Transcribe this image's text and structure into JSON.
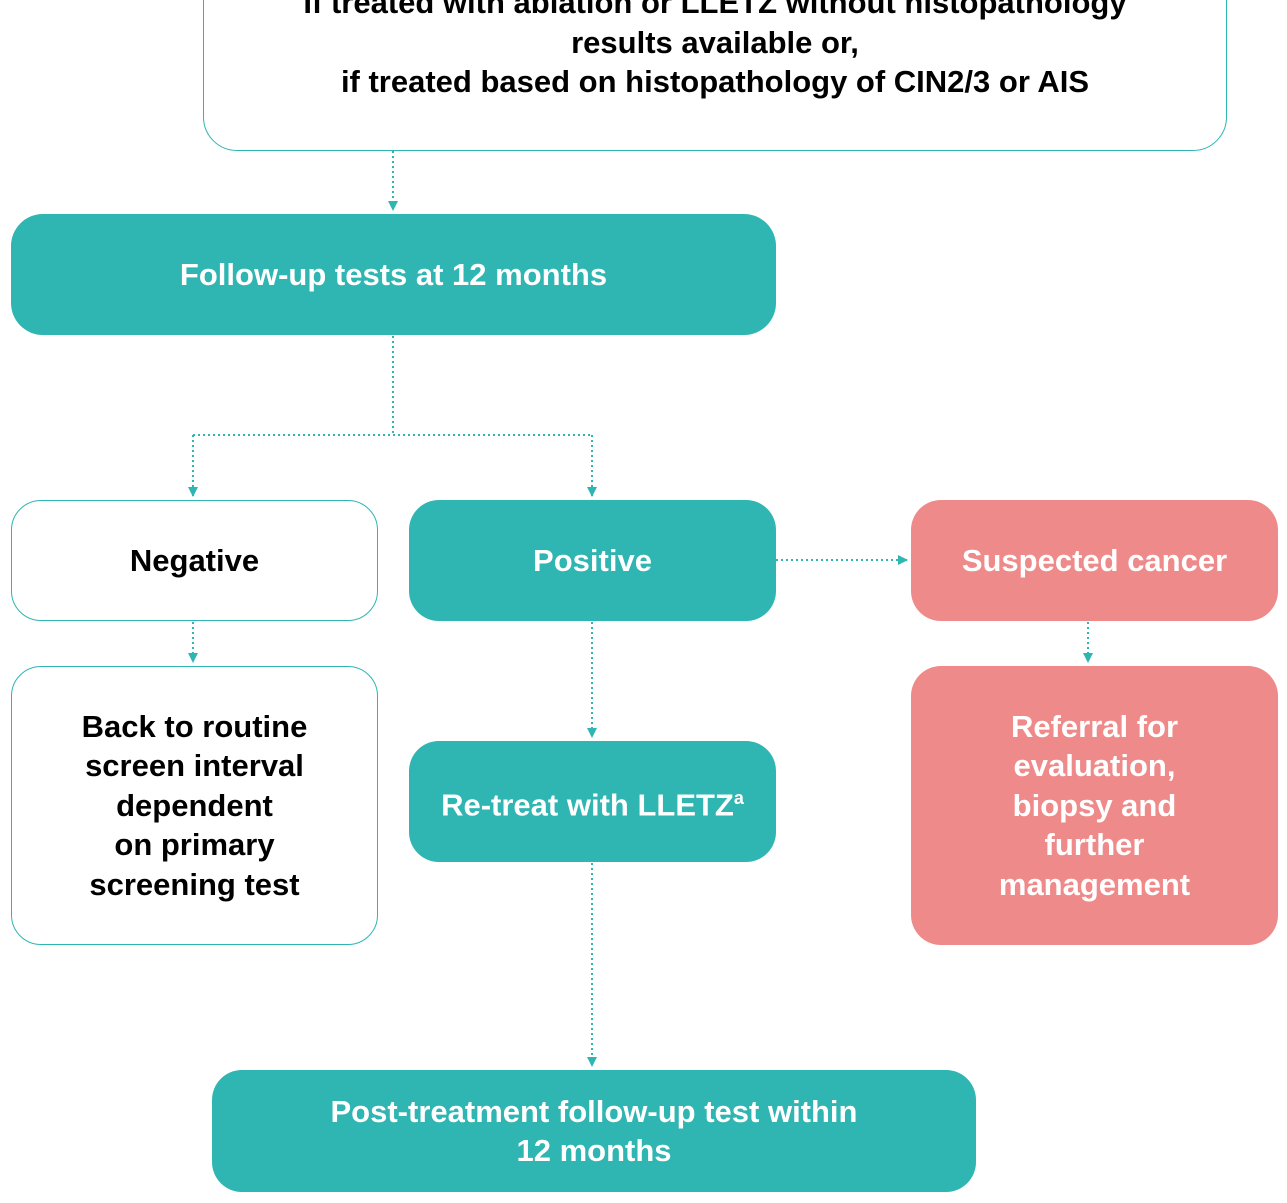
{
  "colors": {
    "teal": "#2fb5b2",
    "pink": "#ef8a8a",
    "outline": "#2fb5b2",
    "text_dark": "#000000",
    "text_light": "#ffffff"
  },
  "nodes": {
    "top_condition": "If treated with ablation or LLETZ without histopathology\nresults available or,\nif treated based on histopathology of CIN2/3 or AIS",
    "follow_up_12": "Follow-up tests at 12 months",
    "negative": "Negative",
    "positive": "Positive",
    "suspected_cancer": "Suspected cancer",
    "back_to_routine": "Back to routine\nscreen interval\ndependent\non primary\nscreening test",
    "retreat": "Re-treat with LLETZ",
    "retreat_sup": "a",
    "referral": "Referral for\nevaluation,\nbiopsy and\nfurther\nmanagement",
    "post_treatment": "Post-treatment follow-up test within\n12 months"
  }
}
